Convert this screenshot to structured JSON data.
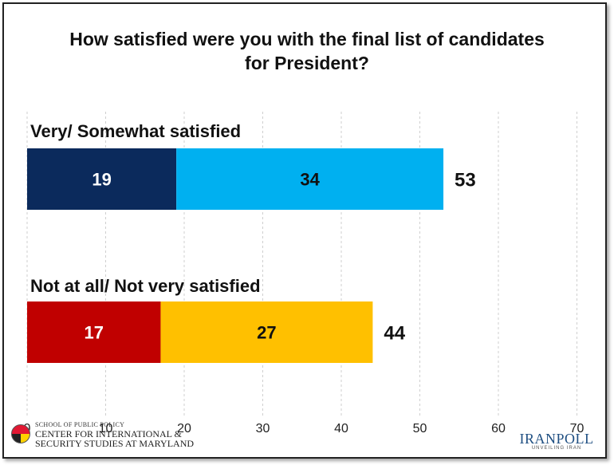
{
  "title": "How satisfied were you with the final list of candidates\nfor President?",
  "chart_data": {
    "type": "bar",
    "orientation": "horizontal",
    "stacked": true,
    "xlim": [
      0,
      70
    ],
    "xticks": [
      "0",
      "10",
      "20",
      "30",
      "40",
      "50",
      "60",
      "70"
    ],
    "grid": "vertical-dashed",
    "groups": [
      {
        "label": "Very/ Somewhat satisfied",
        "segments": [
          {
            "value": 19,
            "label": "19",
            "color": "#0b2a5c"
          },
          {
            "value": 34,
            "label": "34",
            "color": "#00b0f0"
          }
        ],
        "total": 53,
        "total_label": "53"
      },
      {
        "label": "Not at all/ Not very satisfied",
        "segments": [
          {
            "value": 17,
            "label": "17",
            "color": "#c00000"
          },
          {
            "value": 27,
            "label": "27",
            "color": "#ffc000"
          }
        ],
        "total": 44,
        "total_label": "44"
      }
    ]
  },
  "logos": {
    "left_school": "SCHOOL OF PUBLIC POLICY",
    "left_line1": "CENTER FOR INTERNATIONAL &",
    "left_line2": "SECURITY STUDIES AT MARYLAND",
    "right_name": "IRANPOLL",
    "right_tagline": "UNVEILING IRAN"
  }
}
